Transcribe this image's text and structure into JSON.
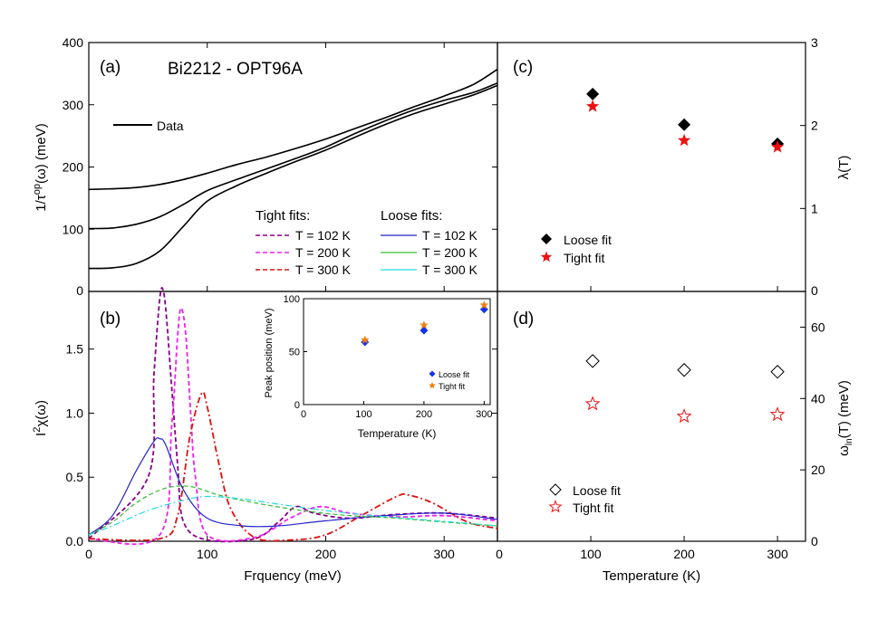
{
  "panel_a": {
    "label": "(a)",
    "title": "Bi2212 - OPT96A",
    "ylabel_main": "1/τ",
    "ylabel_sup": "op",
    "ylabel_tail": "(ω) (meV)",
    "legend_data": "Data",
    "tight_header": "Tight fits:",
    "loose_header": "Loose fits:",
    "tight_entries": [
      "T = 102 K",
      "T = 200 K",
      "T = 300 K"
    ],
    "loose_entries": [
      "T = 102 K",
      "T = 200 K",
      "T = 300 K"
    ],
    "yticks": [
      "0",
      "100",
      "200",
      "300",
      "400"
    ]
  },
  "panel_b": {
    "label": "(b)",
    "ylabel_main": "I",
    "ylabel_sup": "2",
    "ylabel_tail": "χ(ω)",
    "xlabel": "Frquency (meV)",
    "xticks": [
      "0",
      "100",
      "200",
      "300"
    ],
    "yticks": [
      "0.0",
      "0.5",
      "1.0",
      "1.5"
    ]
  },
  "inset": {
    "ylabel": "Peak position (meV)",
    "xlabel": "Temperature (K)",
    "xticks": [
      "0",
      "100",
      "200",
      "300"
    ],
    "yticks": [
      "0",
      "50",
      "100"
    ],
    "legend_loose": "Loose fit",
    "legend_tight": "Tight fit"
  },
  "panel_c": {
    "label": "(c)",
    "ylabel": "λ(T)",
    "yticks": [
      "0",
      "1",
      "2",
      "3"
    ],
    "legend_loose": "Loose fit",
    "legend_tight": "Tight fit"
  },
  "panel_d": {
    "label": "(d)",
    "ylabel_main": "ω",
    "ylabel_sub": "ln",
    "ylabel_tail": "(T) (meV)",
    "xlabel": "Temperature (K)",
    "xticks": [
      "100",
      "200",
      "300"
    ],
    "yticks": [
      "0",
      "20",
      "40",
      "60"
    ],
    "legend_loose": "Loose fit",
    "legend_tight": "Tight fit"
  },
  "chart_data": [
    {
      "type": "line",
      "panel": "a",
      "xlim": [
        0,
        345
      ],
      "ylim": [
        0,
        400
      ],
      "series": [
        {
          "name": "Data",
          "color": "#000000",
          "x": [
            0,
            20,
            40,
            60,
            80,
            100,
            125,
            150,
            175,
            200,
            225,
            250,
            275,
            300,
            325,
            345
          ],
          "y": [
            164,
            165,
            167,
            172,
            180,
            190,
            204,
            216,
            230,
            245,
            262,
            279,
            297,
            314,
            333,
            357
          ]
        },
        {
          "name": "Data",
          "color": "#000000",
          "x": [
            0,
            20,
            40,
            60,
            80,
            100,
            125,
            150,
            175,
            200,
            225,
            250,
            275,
            300,
            325,
            345
          ],
          "y": [
            101,
            102,
            108,
            120,
            140,
            162,
            180,
            197,
            214,
            232,
            254,
            274,
            292,
            307,
            320,
            335
          ]
        },
        {
          "name": "Data",
          "color": "#000000",
          "x": [
            0,
            20,
            40,
            60,
            80,
            100,
            125,
            150,
            175,
            200,
            225,
            250,
            275,
            300,
            325,
            345
          ],
          "y": [
            37,
            38,
            45,
            65,
            105,
            145,
            170,
            190,
            209,
            227,
            248,
            268,
            286,
            301,
            316,
            331
          ]
        }
      ]
    },
    {
      "type": "line",
      "panel": "b",
      "xlim": [
        0,
        345
      ],
      "ylim": [
        0,
        1.95
      ],
      "series": [
        {
          "name": "Tight T = 102 K",
          "color": "#880088",
          "x": [
            0,
            50,
            55,
            60,
            63,
            66,
            70,
            75,
            80,
            100,
            140,
            160,
            175,
            190,
            220,
            260,
            300,
            345
          ],
          "y": [
            0.02,
            0.5,
            1.3,
            1.9,
            1.95,
            1.7,
            1.2,
            0.6,
            0.15,
            0.01,
            0.02,
            0.15,
            0.27,
            0.22,
            0.18,
            0.21,
            0.22,
            0.18
          ]
        },
        {
          "name": "Tight T = 200 K",
          "color": "#ee22ee",
          "x": [
            0,
            60,
            70,
            75,
            78,
            82,
            86,
            90,
            100,
            140,
            170,
            195,
            220,
            260,
            300,
            345
          ],
          "y": [
            0.02,
            0.05,
            0.9,
            1.6,
            1.82,
            1.6,
            1.0,
            0.5,
            0.05,
            0.03,
            0.18,
            0.27,
            0.22,
            0.19,
            0.2,
            0.16
          ]
        },
        {
          "name": "Tight T = 300 K",
          "color": "#dd1111",
          "x": [
            0,
            60,
            75,
            85,
            95,
            100,
            110,
            120,
            140,
            170,
            200,
            230,
            260,
            270,
            290,
            320,
            345
          ],
          "y": [
            0.02,
            0.02,
            0.2,
            0.8,
            1.15,
            1.05,
            0.6,
            0.25,
            0.03,
            0.01,
            0.05,
            0.2,
            0.35,
            0.36,
            0.3,
            0.15,
            0.1
          ]
        },
        {
          "name": "Loose T = 102 K",
          "color": "#2222cc",
          "x": [
            0,
            20,
            40,
            55,
            60,
            65,
            80,
            100,
            130,
            160,
            200,
            250,
            300,
            345
          ],
          "y": [
            0.05,
            0.2,
            0.55,
            0.78,
            0.8,
            0.75,
            0.4,
            0.18,
            0.12,
            0.12,
            0.16,
            0.2,
            0.22,
            0.17
          ]
        },
        {
          "name": "Loose T = 200 K",
          "color": "#33bb33",
          "x": [
            0,
            20,
            40,
            60,
            75,
            90,
            110,
            140,
            180,
            220,
            260,
            300,
            345
          ],
          "y": [
            0.05,
            0.15,
            0.3,
            0.4,
            0.43,
            0.42,
            0.36,
            0.3,
            0.24,
            0.2,
            0.18,
            0.15,
            0.12
          ]
        },
        {
          "name": "Loose T = 300 K",
          "color": "#22dddd",
          "x": [
            0,
            20,
            50,
            80,
            100,
            130,
            160,
            200,
            240,
            280,
            320,
            345
          ],
          "y": [
            0.05,
            0.12,
            0.24,
            0.32,
            0.35,
            0.33,
            0.29,
            0.24,
            0.2,
            0.17,
            0.14,
            0.12
          ]
        }
      ]
    },
    {
      "type": "scatter",
      "panel": "inset",
      "xlim": [
        0,
        310
      ],
      "ylim": [
        0,
        100
      ],
      "series": [
        {
          "name": "Loose fit",
          "color": "#1133ee",
          "x": [
            102,
            200,
            300
          ],
          "y": [
            59,
            70,
            90
          ]
        },
        {
          "name": "Tight fit",
          "color": "#f08010",
          "x": [
            102,
            200,
            300
          ],
          "y": [
            61,
            75,
            94
          ]
        }
      ]
    },
    {
      "type": "scatter",
      "panel": "c",
      "xlim": [
        0,
        330
      ],
      "ylim": [
        0,
        3
      ],
      "series": [
        {
          "name": "Loose fit",
          "color": "#000000",
          "x": [
            102,
            200,
            300
          ],
          "y": [
            2.38,
            2.01,
            1.78
          ]
        },
        {
          "name": "Tight fit",
          "color": "#ee1111",
          "x": [
            102,
            200,
            300
          ],
          "y": [
            2.23,
            1.82,
            1.74
          ]
        }
      ]
    },
    {
      "type": "scatter",
      "panel": "d",
      "xlim": [
        0,
        330
      ],
      "ylim": [
        0,
        70
      ],
      "series": [
        {
          "name": "Loose fit",
          "color": "#000000",
          "x": [
            102,
            200,
            300
          ],
          "y": [
            50.5,
            48,
            47.5
          ]
        },
        {
          "name": "Tight fit",
          "color": "#ee1111",
          "x": [
            102,
            200,
            300
          ],
          "y": [
            38.5,
            35,
            35.5
          ]
        }
      ]
    }
  ]
}
